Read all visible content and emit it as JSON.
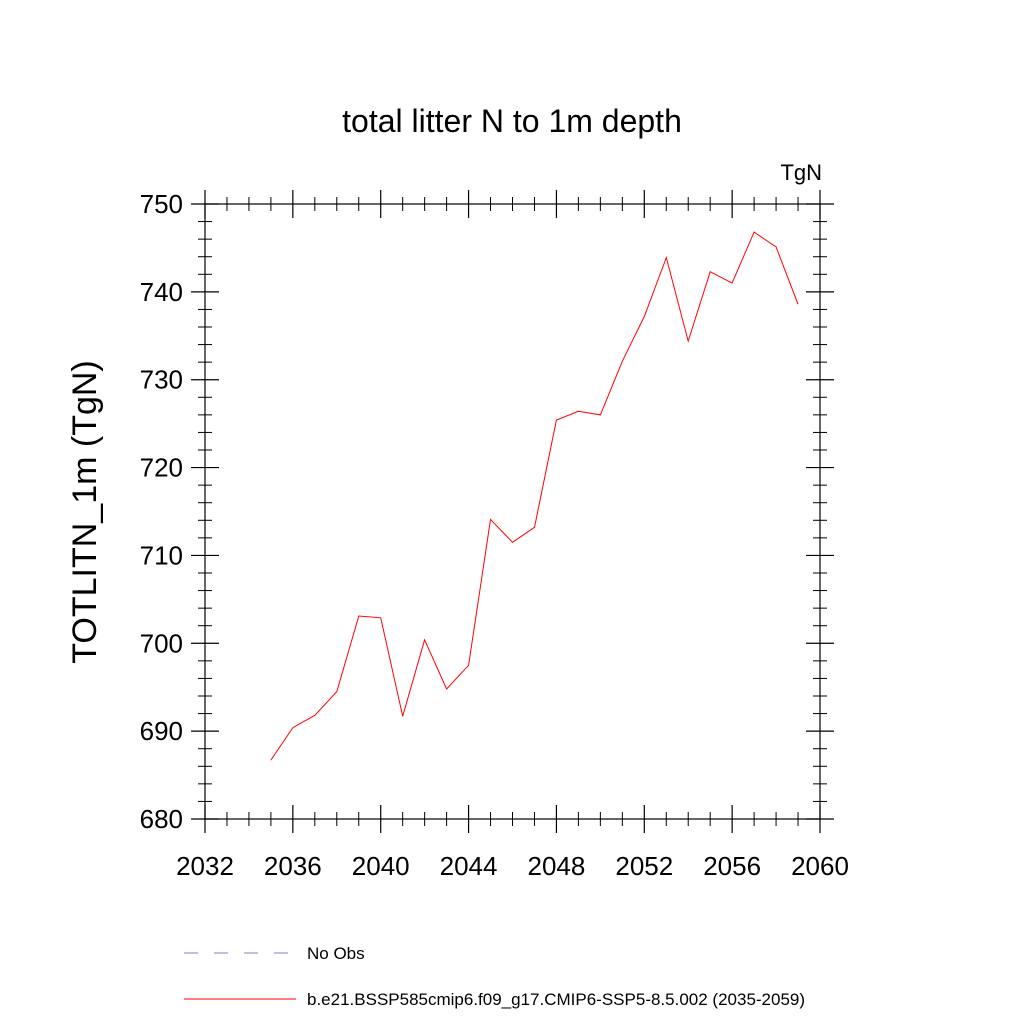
{
  "chart_data": {
    "type": "line",
    "title": "total litter N to 1m depth",
    "units": "TgN",
    "xlabel": "",
    "ylabel": "TOTLITN_1m  (TgN)",
    "xlim": [
      2032,
      2060
    ],
    "ylim": [
      680,
      750
    ],
    "x_ticks": [
      2032,
      2036,
      2040,
      2044,
      2048,
      2052,
      2056,
      2060
    ],
    "x_tick_labels": [
      "2032",
      "2036",
      "2040",
      "2044",
      "2048",
      "2052",
      "2056",
      "2060"
    ],
    "y_ticks": [
      680,
      690,
      700,
      710,
      720,
      730,
      740,
      750
    ],
    "y_tick_labels": [
      "680",
      "690",
      "700",
      "710",
      "720",
      "730",
      "740",
      "750"
    ],
    "grid": false,
    "series": [
      {
        "name": "b.e21.BSSP585cmip6.f09_g17.CMIP6-SSP5-8.5.002 (2035-2059)",
        "color": "#ff0000",
        "style": "solid",
        "x": [
          2035,
          2036,
          2037,
          2038,
          2039,
          2040,
          2041,
          2042,
          2043,
          2044,
          2045,
          2046,
          2047,
          2048,
          2049,
          2050,
          2051,
          2052,
          2053,
          2054,
          2055,
          2056,
          2057,
          2058,
          2059
        ],
        "y": [
          686.7,
          690.4,
          691.8,
          694.5,
          703.1,
          702.9,
          691.7,
          700.4,
          694.8,
          697.5,
          714.1,
          711.5,
          713.2,
          725.4,
          726.4,
          726.0,
          732.1,
          737.2,
          743.9,
          734.4,
          742.3,
          741.0,
          746.8,
          745.1,
          738.6
        ]
      }
    ],
    "legend": {
      "placement": "bottom",
      "entries": [
        {
          "label": "No Obs",
          "color": "#7f7fcc",
          "style": "dashed"
        },
        {
          "label": "b.e21.BSSP585cmip6.f09_g17.CMIP6-SSP5-8.5.002 (2035-2059)",
          "color": "#ff0000",
          "style": "solid"
        }
      ]
    }
  }
}
